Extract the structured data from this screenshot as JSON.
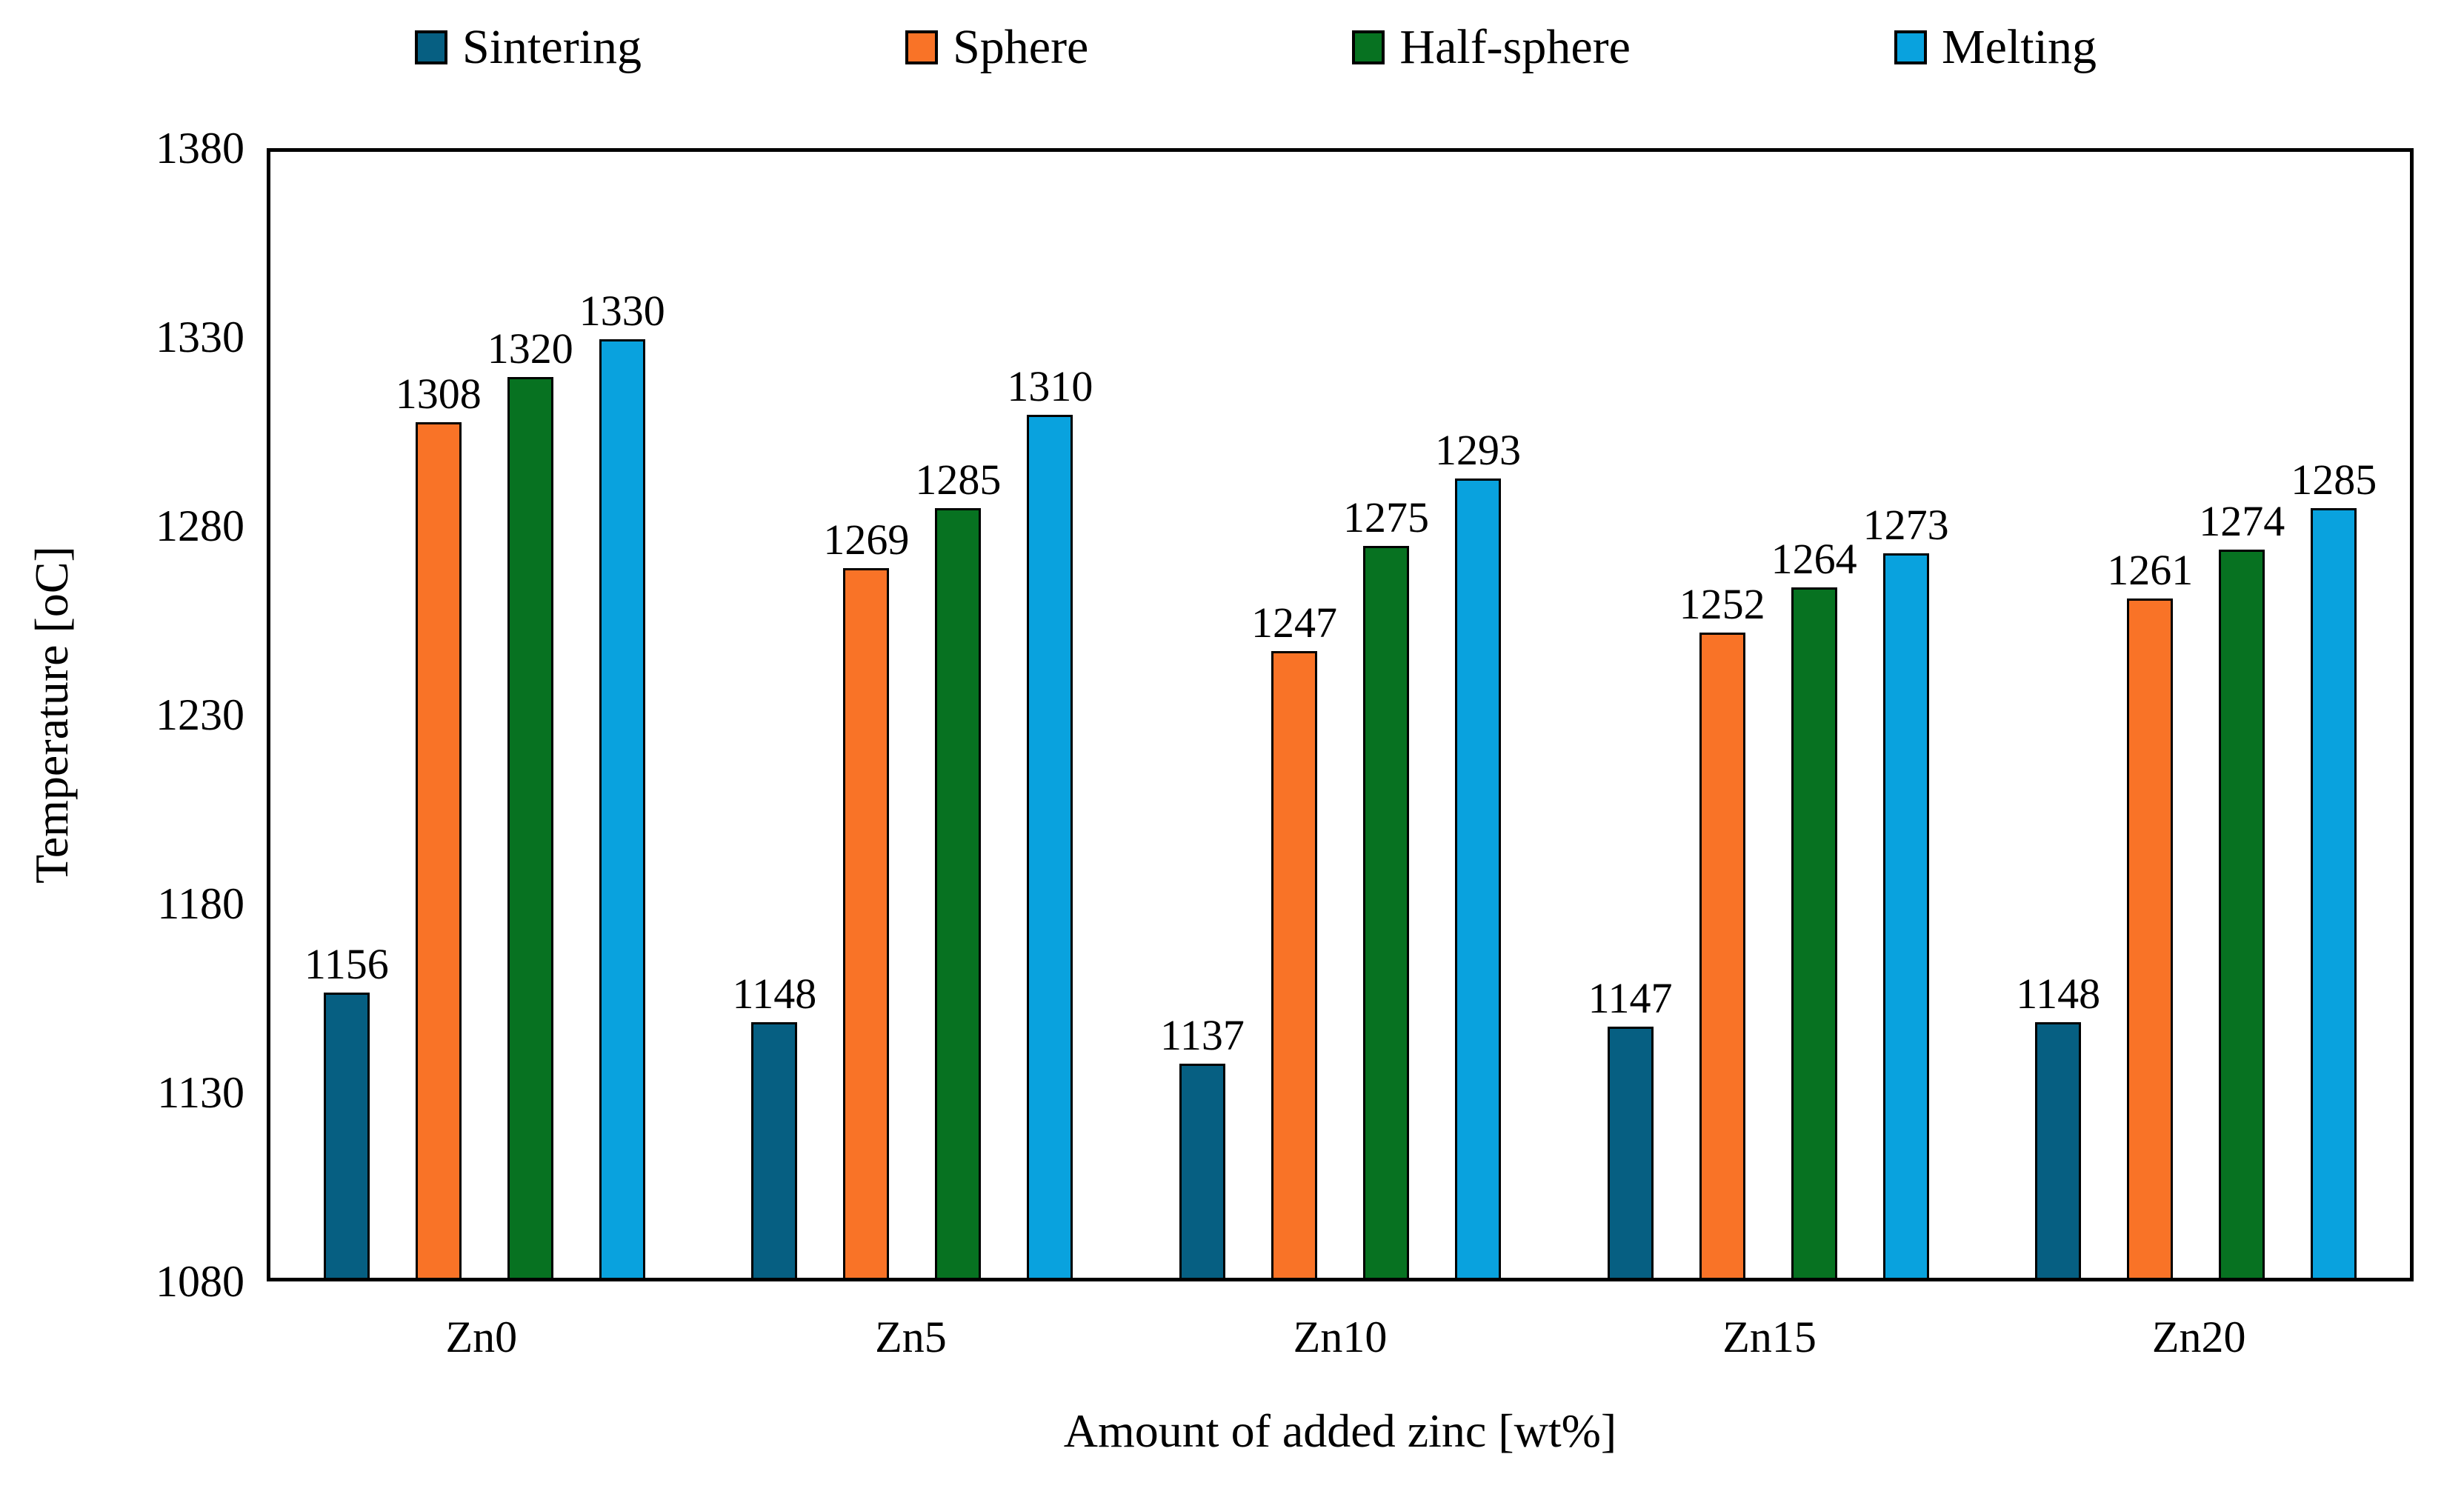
{
  "chart_data": {
    "type": "bar",
    "title": "",
    "categories": [
      "Zn0",
      "Zn5",
      "Zn10",
      "Zn15",
      "Zn20"
    ],
    "series": [
      {
        "name": "Sintering",
        "color": "#065f82",
        "values": [
          1156,
          1148,
          1137,
          1147,
          1148
        ]
      },
      {
        "name": "Sphere",
        "color": "#f97327",
        "values": [
          1308,
          1269,
          1247,
          1252,
          1261
        ]
      },
      {
        "name": "Half-sphere",
        "color": "#077221",
        "values": [
          1320,
          1285,
          1275,
          1264,
          1274
        ]
      },
      {
        "name": "Melting",
        "color": "#09a2de",
        "values": [
          1330,
          1310,
          1293,
          1273,
          1285
        ]
      }
    ],
    "xlabel": "Amount of added zinc [wt%]",
    "ylabel": "Temperature [oC]",
    "ylim": [
      1080,
      1380
    ],
    "yticks": [
      1080,
      1130,
      1180,
      1230,
      1280,
      1330,
      1380
    ],
    "grid": false,
    "legend_position": "top",
    "bar_outline_color": "#000000",
    "axis_color": "#000000",
    "background_color": "#ffffff",
    "data_labels_shown": true
  }
}
